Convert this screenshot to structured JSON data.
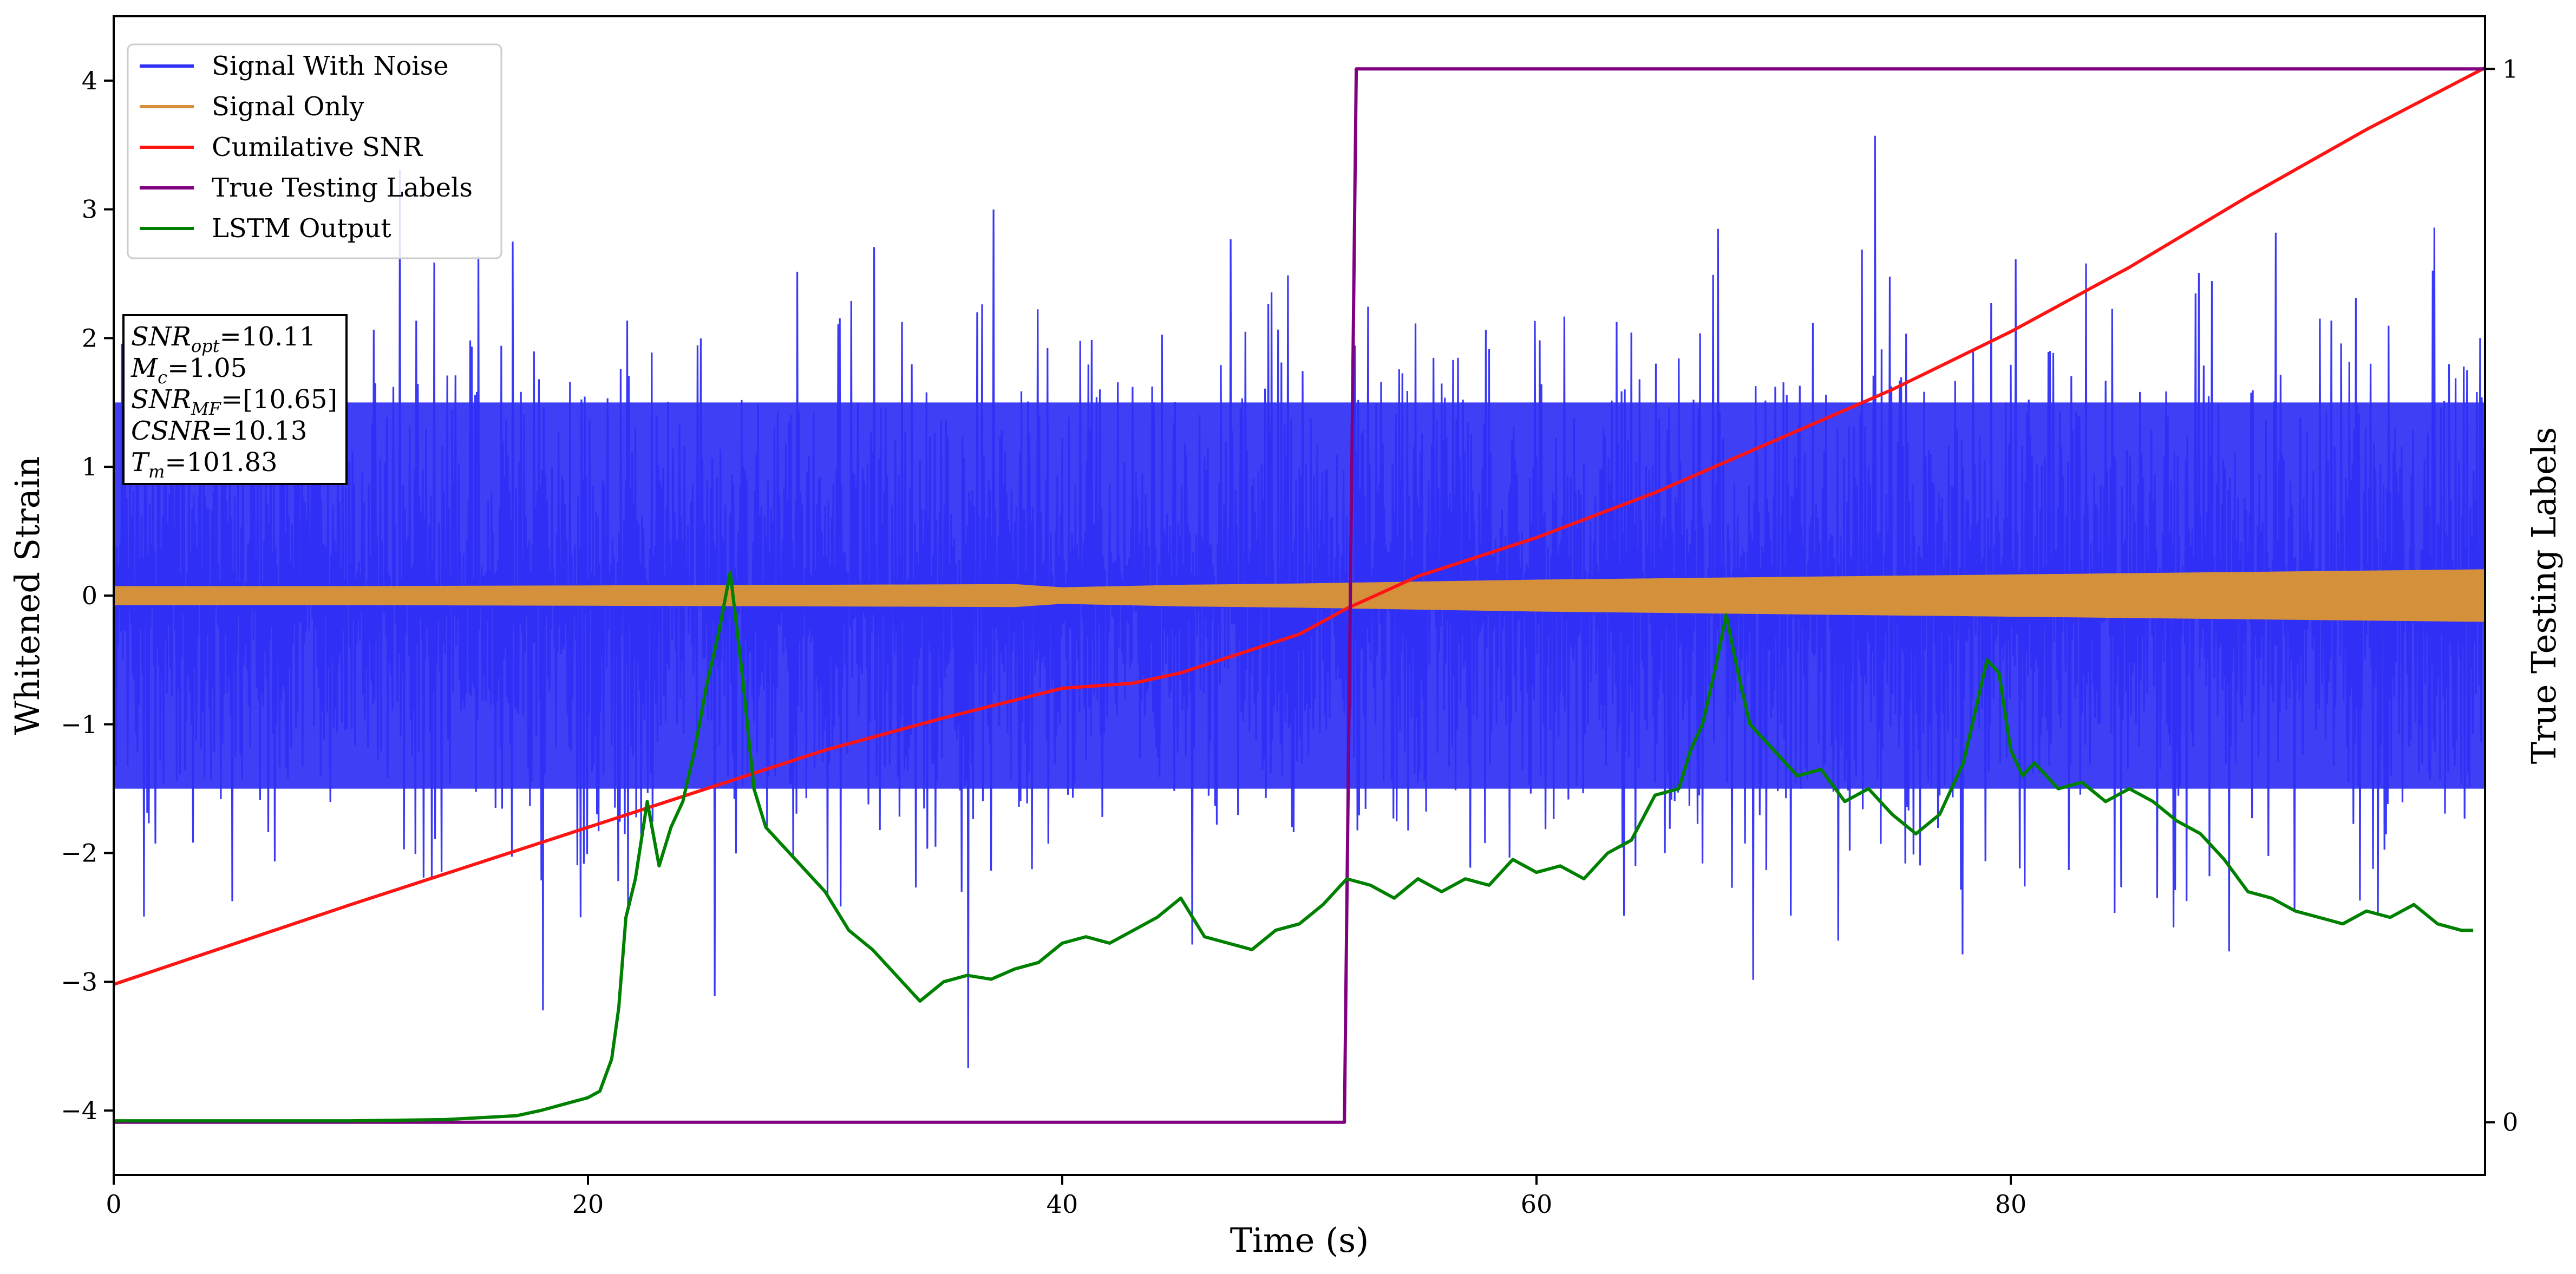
{
  "chart_data": {
    "type": "line",
    "xlabel": "Time (s)",
    "ylabel": "Whitened Strain",
    "y2label": "True Testing Labels",
    "xlim": [
      0,
      100
    ],
    "ylim": [
      -4.5,
      4.5
    ],
    "y2lim": [
      -0.05,
      1.05
    ],
    "grid": false,
    "legend_position": "top-left",
    "x_ticks": [
      0,
      20,
      40,
      60,
      80
    ],
    "y_ticks": [
      -4,
      -3,
      -2,
      -1,
      0,
      1,
      2,
      3,
      4
    ],
    "y2_ticks": [
      0,
      1
    ],
    "series": [
      {
        "name": "Signal With Noise",
        "axis": "left",
        "color": "#2f2ff5",
        "render": "noise-band",
        "envelope_min": -3.67,
        "envelope_max": 4.1,
        "typical_min": -1.5,
        "typical_max": 1.5
      },
      {
        "name": "Signal Only",
        "axis": "left",
        "color": "#d4903a",
        "render": "band",
        "x": [
          0,
          10,
          20,
          30,
          38,
          40,
          45,
          50,
          60,
          70,
          80,
          90,
          100
        ],
        "amplitude": [
          0.07,
          0.07,
          0.075,
          0.08,
          0.085,
          0.06,
          0.08,
          0.09,
          0.12,
          0.14,
          0.16,
          0.18,
          0.2
        ]
      },
      {
        "name": "Cumilative SNR",
        "axis": "left",
        "color": "#ff1414",
        "x": [
          0,
          10,
          20,
          30,
          35,
          40,
          43,
          45,
          50,
          52,
          55,
          60,
          65,
          70,
          75,
          80,
          85,
          90,
          95,
          100
        ],
        "values": [
          -3.02,
          -2.4,
          -1.8,
          -1.2,
          -0.95,
          -0.72,
          -0.68,
          -0.6,
          -0.3,
          -0.1,
          0.15,
          0.45,
          0.8,
          1.2,
          1.6,
          2.05,
          2.55,
          3.1,
          3.62,
          4.1
        ]
      },
      {
        "name": "True Testing Labels",
        "axis": "right",
        "color": "#800080",
        "x": [
          0,
          51.9,
          52.4,
          100
        ],
        "values": [
          0,
          0,
          1,
          1
        ]
      },
      {
        "name": "LSTM Output",
        "axis": "left",
        "color": "#008000",
        "x": [
          0,
          10,
          14,
          16,
          17,
          18,
          19,
          20,
          20.5,
          21,
          21.3,
          21.6,
          22,
          22.5,
          23,
          23.5,
          24,
          24.5,
          25,
          25.5,
          26,
          26.5,
          27,
          27.5,
          28,
          29,
          30,
          31,
          32,
          33,
          34,
          35,
          36,
          37,
          38,
          39,
          40,
          41,
          42,
          43,
          44,
          45,
          46,
          47,
          48,
          49,
          50,
          51,
          52,
          53,
          54,
          55,
          56,
          57,
          58,
          59,
          60,
          61,
          62,
          63,
          64,
          65,
          66,
          66.5,
          67,
          67.5,
          68,
          68.5,
          69,
          70,
          71,
          72,
          73,
          74,
          75,
          76,
          77,
          78,
          79,
          79.5,
          80,
          80.5,
          81,
          82,
          83,
          84,
          85,
          86,
          87,
          88,
          89,
          90,
          91,
          92,
          93,
          94,
          95,
          96,
          97,
          98,
          99,
          99.5
        ],
        "values": [
          -4.08,
          -4.08,
          -4.07,
          -4.05,
          -4.04,
          -4.0,
          -3.95,
          -3.9,
          -3.85,
          -3.6,
          -3.2,
          -2.5,
          -2.2,
          -1.6,
          -2.1,
          -1.8,
          -1.6,
          -1.2,
          -0.7,
          -0.3,
          0.18,
          -0.6,
          -1.5,
          -1.8,
          -1.9,
          -2.1,
          -2.3,
          -2.6,
          -2.75,
          -2.95,
          -3.15,
          -3.0,
          -2.95,
          -2.98,
          -2.9,
          -2.85,
          -2.7,
          -2.65,
          -2.7,
          -2.6,
          -2.5,
          -2.35,
          -2.65,
          -2.7,
          -2.75,
          -2.6,
          -2.55,
          -2.4,
          -2.2,
          -2.25,
          -2.35,
          -2.2,
          -2.3,
          -2.2,
          -2.25,
          -2.05,
          -2.15,
          -2.1,
          -2.2,
          -2.0,
          -1.9,
          -1.55,
          -1.5,
          -1.2,
          -1.0,
          -0.6,
          -0.15,
          -0.6,
          -1.0,
          -1.2,
          -1.4,
          -1.35,
          -1.6,
          -1.5,
          -1.7,
          -1.85,
          -1.7,
          -1.3,
          -0.5,
          -0.6,
          -1.2,
          -1.4,
          -1.3,
          -1.5,
          -1.45,
          -1.6,
          -1.5,
          -1.6,
          -1.75,
          -1.85,
          -2.05,
          -2.3,
          -2.35,
          -2.45,
          -2.5,
          -2.55,
          -2.45,
          -2.5,
          -2.4,
          -2.55,
          -2.6,
          -2.6
        ]
      }
    ],
    "annotation_box": {
      "lines": [
        {
          "main": "SNR",
          "sub": "opt",
          "value": "=10.11"
        },
        {
          "main": "M",
          "sub": "c",
          "value": "=1.05"
        },
        {
          "main": "SNR",
          "sub": "MF",
          "value": "=[10.65]"
        },
        {
          "main": "CSNR",
          "sub": "",
          "value": "=10.13"
        },
        {
          "main": "T",
          "sub": "m",
          "value": "=101.83"
        }
      ]
    }
  }
}
